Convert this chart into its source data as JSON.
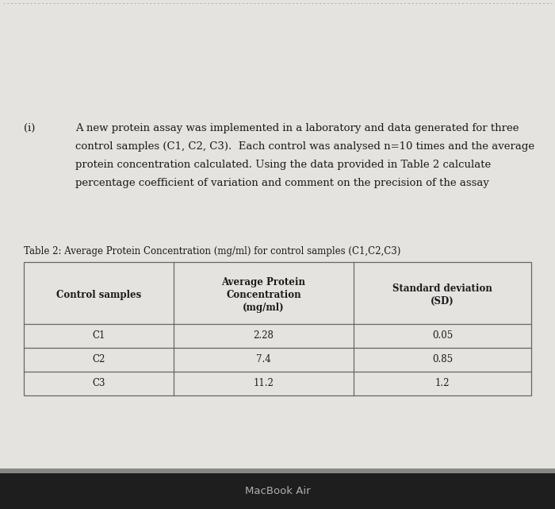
{
  "page_color": "#e5e3e0",
  "top_border_color": "#aaaaaa",
  "paragraph_label": "(i)",
  "paragraph_lines": [
    "A new protein assay was implemented in a laboratory and data generated for three",
    "control samples (C1, C2, C3).  Each control was analysed n=10 times and the average",
    "protein concentration calculated. Using the data provided in Table 2 calculate",
    "percentage coefficient of variation and comment on the precision of the assay"
  ],
  "table_caption": "Table 2: Average Protein Concentration (mg/ml) for control samples (C1,C2,C3)",
  "col_header_lines": [
    [
      "Control samples"
    ],
    [
      "Average Protein",
      "Concentration",
      "(mg/ml)"
    ],
    [
      "Standard deviation",
      "(SD)"
    ]
  ],
  "rows": [
    [
      "C1",
      "2.28",
      "0.05"
    ],
    [
      "C2",
      "7.4",
      "0.85"
    ],
    [
      "C3",
      "11.2",
      "1.2"
    ]
  ],
  "footer_text": "MacBook Air",
  "footer_bg": "#1e1e1e",
  "footer_text_color": "#b0b0b0",
  "table_border_color": "#666666",
  "text_color": "#1a1a1a",
  "header_font_size": 8.5,
  "body_font_size": 8.5,
  "paragraph_font_size": 9.5,
  "caption_font_size": 8.5,
  "label_font_size": 9.5
}
